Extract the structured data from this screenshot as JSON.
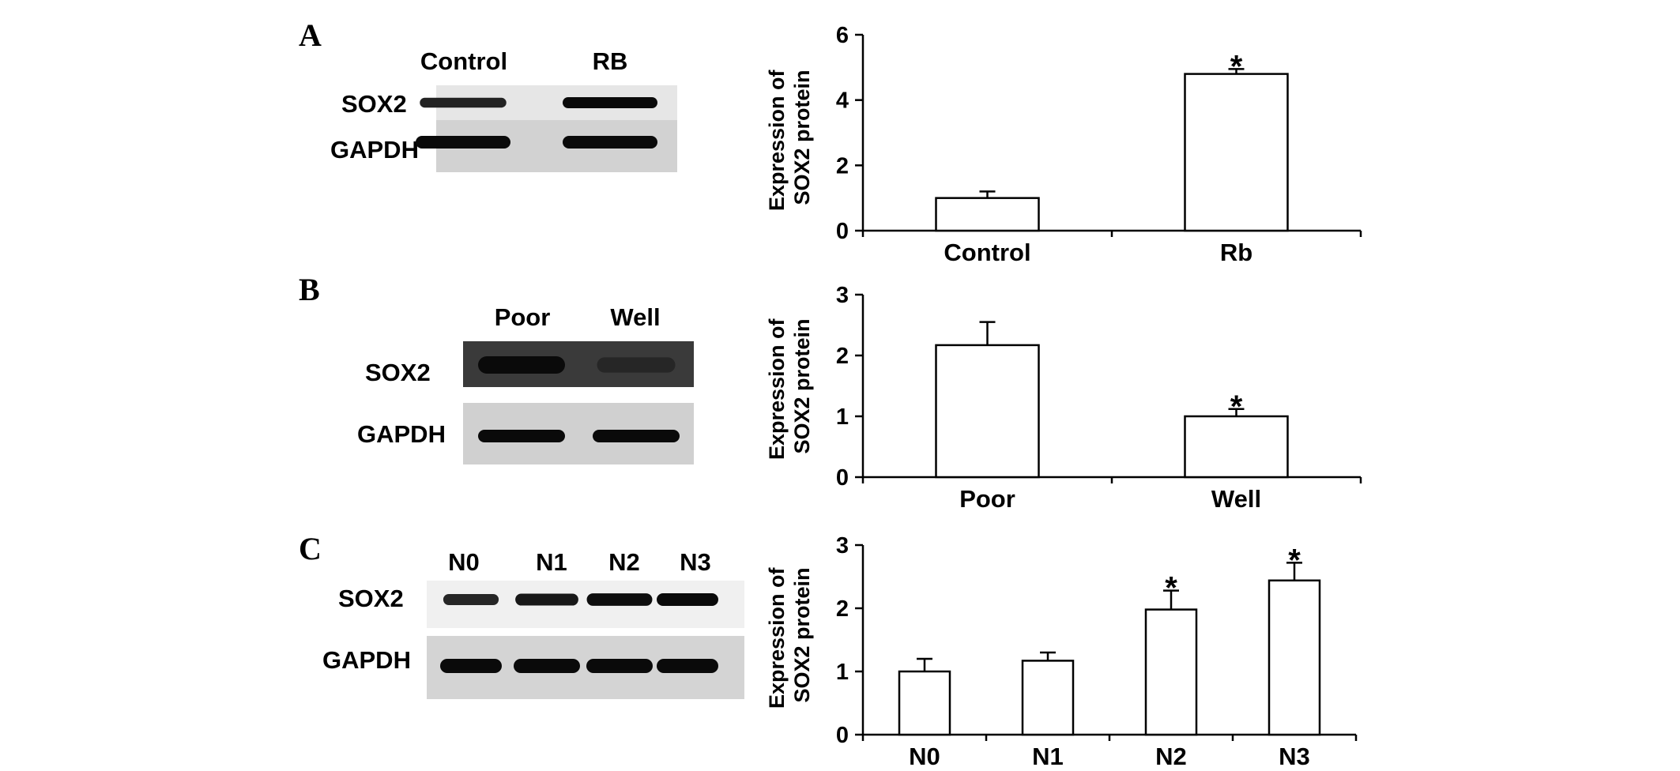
{
  "figure": {
    "panels": [
      {
        "letter": "A",
        "blot": {
          "lanes": [
            "Control",
            "RB"
          ],
          "rows": [
            {
              "label": "SOX2",
              "band_intensity": [
                0.65,
                1.0
              ]
            },
            {
              "label": "GAPDH",
              "band_intensity": [
                1.0,
                1.0
              ]
            }
          ]
        }
      },
      {
        "letter": "B",
        "blot": {
          "lanes": [
            "Poor",
            "Well"
          ],
          "rows": [
            {
              "label": "SOX2",
              "band_intensity": [
                1.0,
                0.6
              ]
            },
            {
              "label": "GAPDH",
              "band_intensity": [
                1.0,
                1.0
              ]
            }
          ]
        }
      },
      {
        "letter": "C",
        "blot": {
          "lanes": [
            "N0",
            "N1",
            "N2",
            "N3"
          ],
          "rows": [
            {
              "label": "SOX2",
              "band_intensity": [
                0.6,
                0.8,
                0.95,
                1.0
              ]
            },
            {
              "label": "GAPDH",
              "band_intensity": [
                1.0,
                1.0,
                1.0,
                1.0
              ]
            }
          ]
        }
      }
    ]
  },
  "chart_data": [
    {
      "type": "bar",
      "panel": "A",
      "categories": [
        "Control",
        "Rb"
      ],
      "values": [
        1.0,
        4.8
      ],
      "errors": [
        0.2,
        0.15
      ],
      "significance": [
        "",
        "*"
      ],
      "ylabel_lines": [
        "Expression of",
        "SOX2 protein"
      ],
      "ylim": [
        0,
        6
      ],
      "yticks": [
        0,
        2,
        4,
        6
      ],
      "grid": false
    },
    {
      "type": "bar",
      "panel": "B",
      "categories": [
        "Poor",
        "Well"
      ],
      "values": [
        2.17,
        1.0
      ],
      "errors": [
        0.38,
        0.12
      ],
      "significance": [
        "",
        "*"
      ],
      "ylabel_lines": [
        "Expression of",
        "SOX2 protein"
      ],
      "ylim": [
        0,
        3
      ],
      "yticks": [
        0,
        1,
        2,
        3
      ],
      "grid": false
    },
    {
      "type": "bar",
      "panel": "C",
      "categories": [
        "N0",
        "N1",
        "N2",
        "N3"
      ],
      "values": [
        1.0,
        1.17,
        1.98,
        2.44
      ],
      "errors": [
        0.2,
        0.13,
        0.3,
        0.28
      ],
      "significance": [
        "",
        "",
        "*",
        "*"
      ],
      "ylabel_lines": [
        "Expression of",
        "SOX2 protein"
      ],
      "ylim": [
        0,
        3
      ],
      "yticks": [
        0,
        1,
        2,
        3
      ],
      "grid": false
    }
  ]
}
